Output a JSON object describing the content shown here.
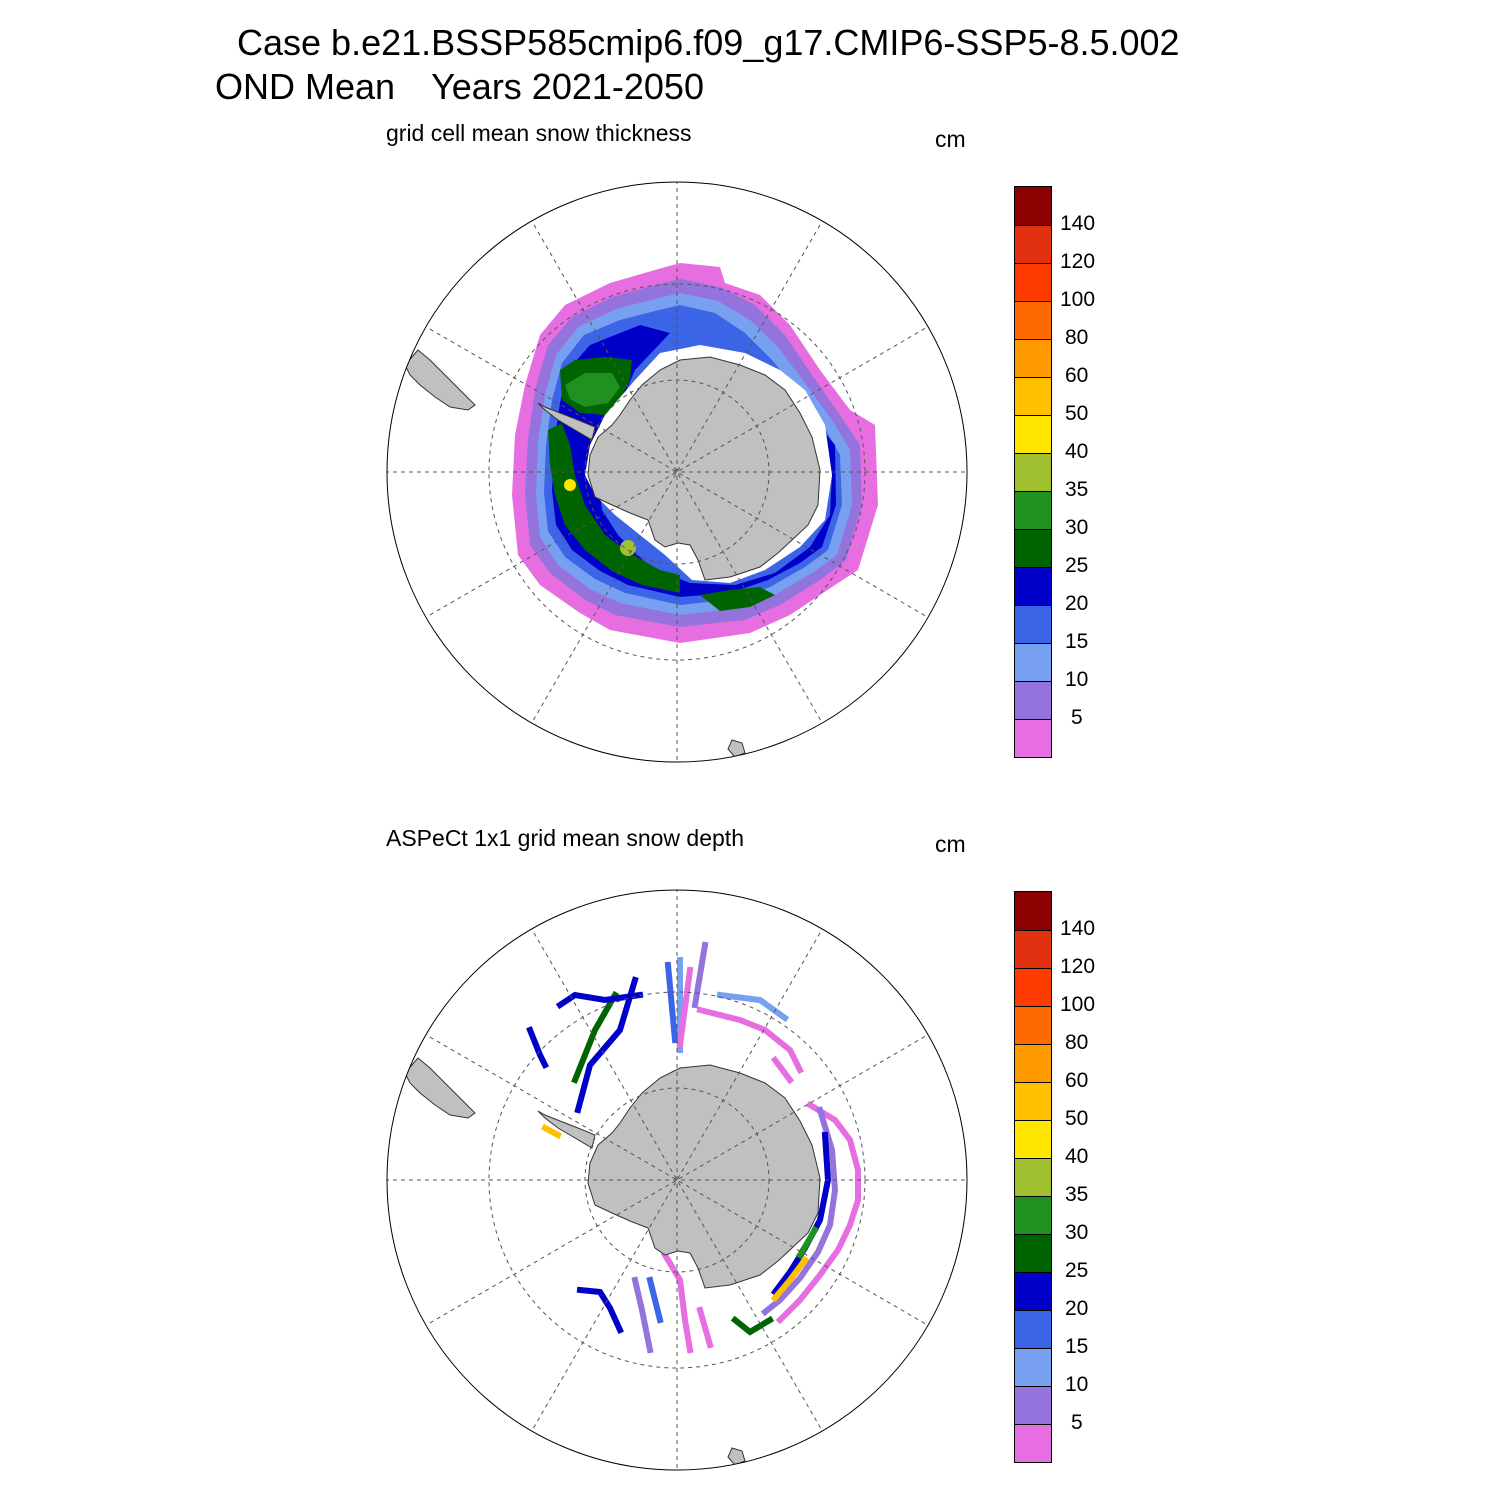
{
  "header": {
    "case_line": "Case b.e21.BSSP585cmip6.f09_g17.CMIP6-SSP5-8.5.002",
    "season": "OND Mean",
    "years": "Years 2021-2050"
  },
  "panels": [
    {
      "title": "grid cell mean snow thickness",
      "units": "cm"
    },
    {
      "title": "ASPeCt 1x1 grid mean snow depth",
      "units": "cm"
    }
  ],
  "colorbar": {
    "levels": [
      "140",
      "120",
      "100",
      "80",
      "60",
      "50",
      "40",
      "35",
      "30",
      "25",
      "20",
      "15",
      "10",
      "5"
    ],
    "colors": [
      "#8b0000",
      "#e03010",
      "#ff3c00",
      "#ff6a00",
      "#ff9a00",
      "#ffc000",
      "#ffe600",
      "#a0c030",
      "#209020",
      "#006400",
      "#0000c8",
      "#3c64e6",
      "#78a0f0",
      "#9474dc",
      "#e66ee0"
    ]
  },
  "map_colors": {
    "land": "#c0c0c0",
    "ocean": "#ffffff",
    "grid": "#555555"
  }
}
